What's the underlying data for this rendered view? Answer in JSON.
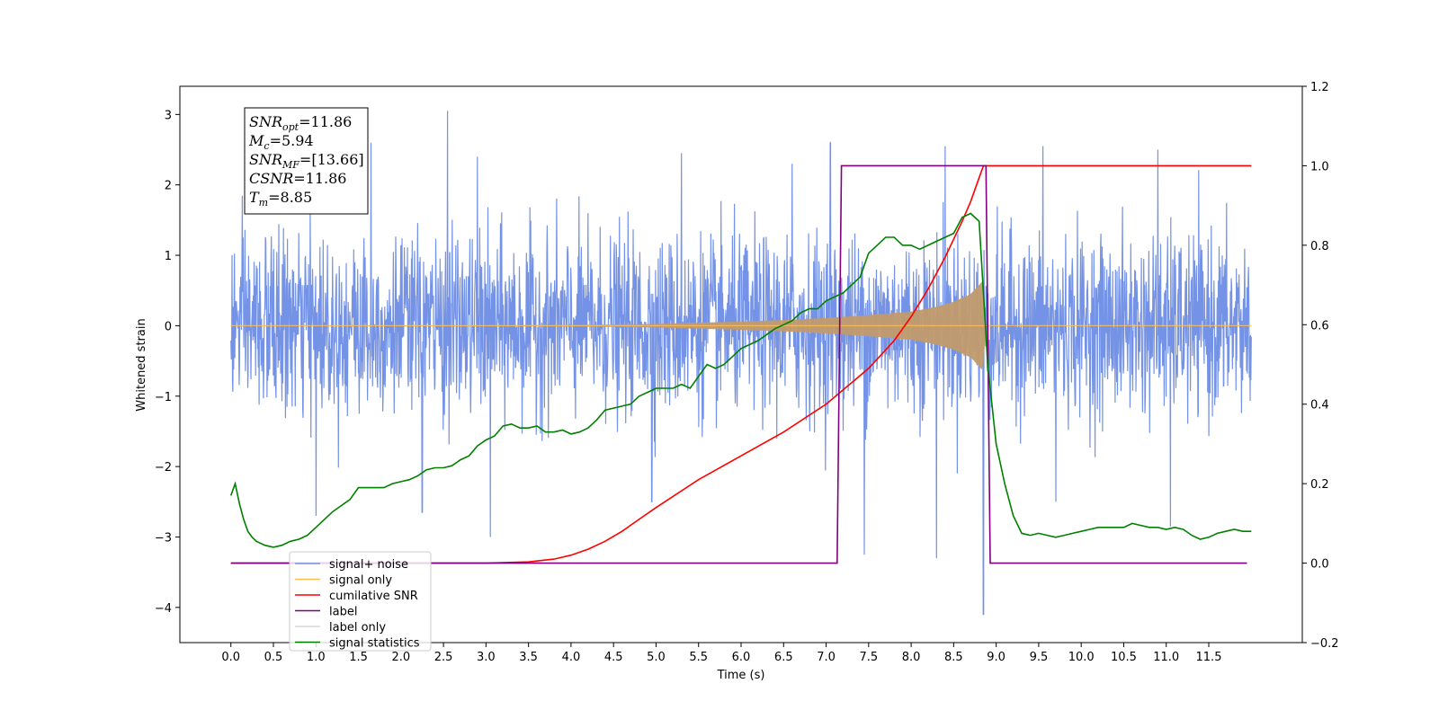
{
  "chart_data": {
    "type": "line",
    "title": "",
    "xlabel": "Time (s)",
    "ylabel": "Whitened strain",
    "y2label": "",
    "xlim": [
      -0.6,
      12.6
    ],
    "ylim": [
      -4.5,
      3.4
    ],
    "y2lim": [
      -0.2,
      1.2
    ],
    "xticks": [
      "0.0",
      "0.5",
      "1.0",
      "1.5",
      "2.0",
      "2.5",
      "3.0",
      "3.5",
      "4.0",
      "4.5",
      "5.0",
      "5.5",
      "6.0",
      "6.5",
      "7.0",
      "7.5",
      "8.0",
      "8.5",
      "9.0",
      "9.5",
      "10.0",
      "10.5",
      "11.0",
      "11.5"
    ],
    "yticks": [
      "3",
      "2",
      "1",
      "0",
      "−1",
      "−2",
      "−3",
      "−4"
    ],
    "y2ticks": [
      "1.2",
      "1.0",
      "0.8",
      "0.6",
      "0.4",
      "0.2",
      "0.0",
      "−0.2"
    ],
    "legend_position": "lower-left",
    "annotation": [
      {
        "sym": "SNR",
        "sub": "opt",
        "value": "=11.86"
      },
      {
        "sym": "M",
        "sub": "c",
        "value": "=5.94"
      },
      {
        "sym": "SNR",
        "sub": "MF",
        "value": "=[13.66]"
      },
      {
        "sym": "CSNR",
        "sub": "",
        "value": "=11.86"
      },
      {
        "sym": "T",
        "sub": "m",
        "value": "=8.85"
      }
    ],
    "series": [
      {
        "name": "signal+ noise",
        "axis": "left",
        "color": "#7593e6",
        "description_x_range": [
          0.0,
          12.0
        ],
        "envelope": {
          "typical_abs": 1.5,
          "max": 3.05,
          "min": -4.1
        },
        "peaks": [
          {
            "x": 2.55,
            "y": 3.05
          },
          {
            "x": 1.65,
            "y": 2.6
          },
          {
            "x": 7.05,
            "y": 2.6
          },
          {
            "x": 8.4,
            "y": 2.55
          },
          {
            "x": 9.55,
            "y": 2.55
          },
          {
            "x": 10.9,
            "y": 2.5
          },
          {
            "x": 2.9,
            "y": 2.4
          },
          {
            "x": 5.3,
            "y": 2.45
          },
          {
            "x": 6.6,
            "y": 2.3
          },
          {
            "x": 3.05,
            "y": -3.0
          },
          {
            "x": 8.85,
            "y": -4.1
          },
          {
            "x": 8.3,
            "y": -3.3
          },
          {
            "x": 7.45,
            "y": -3.25
          },
          {
            "x": 11.05,
            "y": -2.85
          },
          {
            "x": 1.0,
            "y": -2.7
          },
          {
            "x": 2.25,
            "y": -2.65
          },
          {
            "x": 4.95,
            "y": -2.5
          },
          {
            "x": 9.7,
            "y": -2.5
          }
        ]
      },
      {
        "name": "signal only",
        "axis": "left",
        "color": "#ffbf55",
        "envelope_points": [
          {
            "x": 0.0,
            "y": 0.0
          },
          {
            "x": 3.0,
            "y": 0.005
          },
          {
            "x": 4.0,
            "y": 0.01
          },
          {
            "x": 5.0,
            "y": 0.025
          },
          {
            "x": 6.0,
            "y": 0.06
          },
          {
            "x": 6.5,
            "y": 0.08
          },
          {
            "x": 7.0,
            "y": 0.11
          },
          {
            "x": 7.5,
            "y": 0.15
          },
          {
            "x": 8.0,
            "y": 0.2
          },
          {
            "x": 8.3,
            "y": 0.27
          },
          {
            "x": 8.5,
            "y": 0.34
          },
          {
            "x": 8.7,
            "y": 0.45
          },
          {
            "x": 8.8,
            "y": 0.58
          },
          {
            "x": 8.85,
            "y": 0.65
          },
          {
            "x": 8.87,
            "y": 0.0
          },
          {
            "x": 12.0,
            "y": 0.0
          }
        ]
      },
      {
        "name": "cumilative SNR",
        "axis": "right",
        "color": "#ff0000",
        "x": [
          0.0,
          3.0,
          3.5,
          3.8,
          4.0,
          4.2,
          4.4,
          4.6,
          4.8,
          5.0,
          5.5,
          6.0,
          6.5,
          7.0,
          7.5,
          7.8,
          8.0,
          8.2,
          8.4,
          8.6,
          8.7,
          8.8,
          8.85,
          8.86,
          12.0
        ],
        "y": [
          0.0,
          0.0,
          0.003,
          0.01,
          0.02,
          0.035,
          0.055,
          0.08,
          0.11,
          0.14,
          0.21,
          0.27,
          0.33,
          0.4,
          0.49,
          0.56,
          0.62,
          0.69,
          0.77,
          0.86,
          0.91,
          0.97,
          1.0,
          1.0,
          1.0
        ]
      },
      {
        "name": "label",
        "axis": "right",
        "color": "#800080",
        "x": [
          0.0,
          7.13,
          7.18,
          8.88,
          8.93,
          11.95
        ],
        "y": [
          0.0,
          0.0,
          1.0,
          1.0,
          0.0,
          0.0
        ]
      },
      {
        "name": "label only",
        "axis": "right",
        "color": "#d9d9d9"
      },
      {
        "name": "signal statistics",
        "axis": "right",
        "color": "#008000",
        "x": [
          0.0,
          0.05,
          0.1,
          0.15,
          0.2,
          0.25,
          0.3,
          0.4,
          0.5,
          0.6,
          0.7,
          0.8,
          0.9,
          1.0,
          1.1,
          1.2,
          1.3,
          1.4,
          1.5,
          1.6,
          1.7,
          1.8,
          1.9,
          2.0,
          2.1,
          2.2,
          2.3,
          2.4,
          2.5,
          2.6,
          2.7,
          2.8,
          2.9,
          3.0,
          3.1,
          3.2,
          3.3,
          3.4,
          3.5,
          3.6,
          3.7,
          3.8,
          3.9,
          4.0,
          4.1,
          4.2,
          4.3,
          4.4,
          4.5,
          4.6,
          4.7,
          4.8,
          4.9,
          5.0,
          5.1,
          5.2,
          5.3,
          5.4,
          5.5,
          5.6,
          5.7,
          5.8,
          5.9,
          6.0,
          6.1,
          6.2,
          6.3,
          6.4,
          6.5,
          6.6,
          6.7,
          6.8,
          6.9,
          7.0,
          7.1,
          7.2,
          7.3,
          7.4,
          7.5,
          7.6,
          7.7,
          7.8,
          7.9,
          8.0,
          8.1,
          8.2,
          8.3,
          8.4,
          8.5,
          8.6,
          8.7,
          8.8,
          8.9,
          9.0,
          9.1,
          9.2,
          9.3,
          9.4,
          9.5,
          9.6,
          9.7,
          9.8,
          9.9,
          10.0,
          10.1,
          10.2,
          10.3,
          10.4,
          10.5,
          10.6,
          10.7,
          10.8,
          10.9,
          11.0,
          11.1,
          11.2,
          11.3,
          11.4,
          11.5,
          11.6,
          11.7,
          11.8,
          11.9,
          12.0
        ],
        "y": [
          0.17,
          0.2,
          0.15,
          0.11,
          0.08,
          0.065,
          0.055,
          0.045,
          0.04,
          0.045,
          0.055,
          0.06,
          0.07,
          0.09,
          0.11,
          0.13,
          0.145,
          0.16,
          0.19,
          0.19,
          0.19,
          0.19,
          0.2,
          0.205,
          0.21,
          0.22,
          0.235,
          0.24,
          0.24,
          0.245,
          0.26,
          0.27,
          0.295,
          0.31,
          0.32,
          0.345,
          0.35,
          0.34,
          0.34,
          0.345,
          0.33,
          0.33,
          0.335,
          0.325,
          0.33,
          0.34,
          0.36,
          0.385,
          0.39,
          0.395,
          0.4,
          0.42,
          0.43,
          0.44,
          0.44,
          0.44,
          0.45,
          0.44,
          0.47,
          0.5,
          0.49,
          0.5,
          0.52,
          0.54,
          0.55,
          0.56,
          0.575,
          0.59,
          0.6,
          0.61,
          0.63,
          0.64,
          0.64,
          0.66,
          0.67,
          0.68,
          0.7,
          0.72,
          0.78,
          0.8,
          0.82,
          0.82,
          0.8,
          0.8,
          0.79,
          0.8,
          0.81,
          0.82,
          0.83,
          0.87,
          0.88,
          0.86,
          0.5,
          0.3,
          0.2,
          0.12,
          0.075,
          0.07,
          0.075,
          0.07,
          0.065,
          0.07,
          0.075,
          0.08,
          0.085,
          0.09,
          0.09,
          0.09,
          0.09,
          0.1,
          0.095,
          0.09,
          0.09,
          0.085,
          0.09,
          0.085,
          0.07,
          0.06,
          0.065,
          0.075,
          0.08,
          0.085,
          0.08,
          0.08
        ]
      }
    ]
  }
}
